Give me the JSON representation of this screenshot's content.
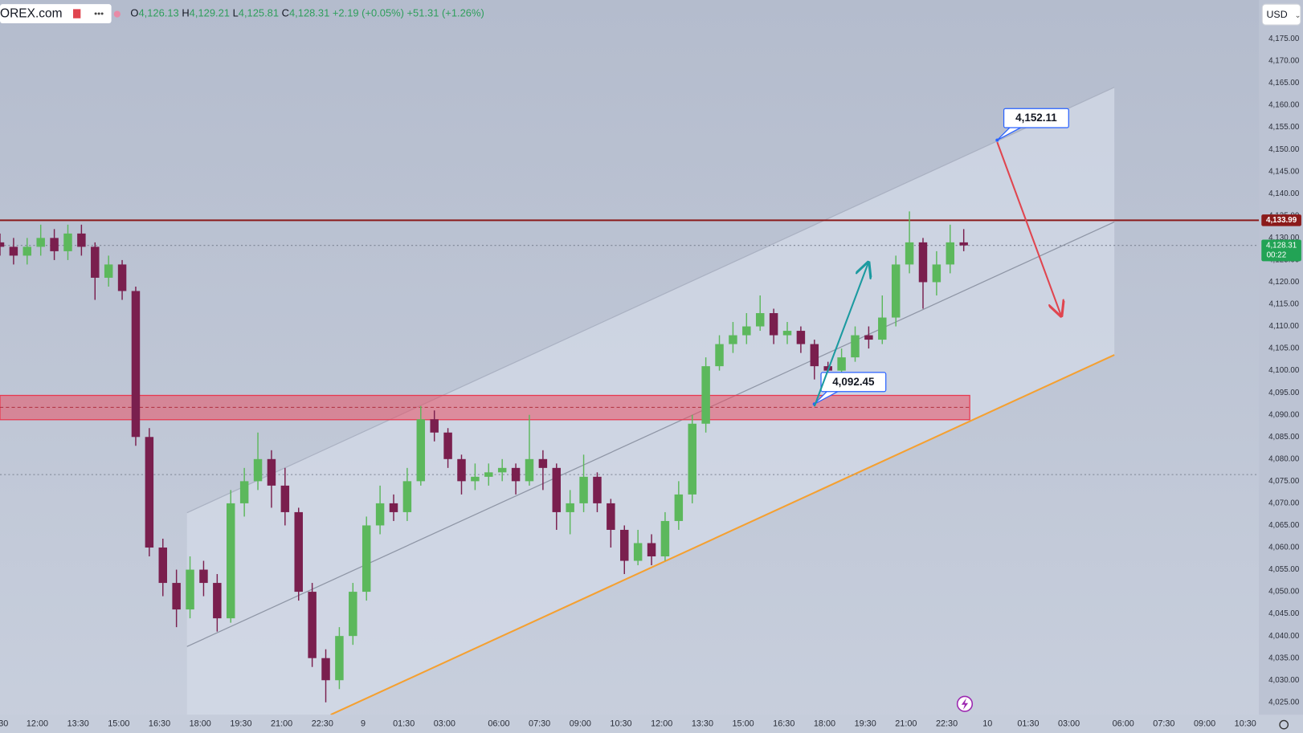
{
  "chart_data": {
    "type": "candlestick",
    "symbol": "OREX.com",
    "currency": "USD",
    "readout": {
      "o_key": "O",
      "o": "4,126.13",
      "h_key": "H",
      "h": "4,129.21",
      "l_key": "L",
      "l": "4,125.81",
      "c_key": "C",
      "c": "4,128.31",
      "change": "+2.19 (+0.05%)",
      "change_day": "+51.31 (+1.26%)"
    },
    "up_color": "#5cb85c",
    "down_color": "#7a1f4e",
    "grid": false,
    "xlim": [
      0,
      92.75
    ],
    "ylim": [
      4022.2,
      4183.8
    ],
    "xticks": [
      {
        "value": 0.25,
        "label": "30"
      },
      {
        "value": 2.75,
        "label": "12:00"
      },
      {
        "value": 5.75,
        "label": "13:30"
      },
      {
        "value": 8.75,
        "label": "15:00"
      },
      {
        "value": 11.75,
        "label": "16:30"
      },
      {
        "value": 14.75,
        "label": "18:00"
      },
      {
        "value": 17.75,
        "label": "19:30"
      },
      {
        "value": 20.75,
        "label": "21:00"
      },
      {
        "value": 23.75,
        "label": "22:30"
      },
      {
        "value": 26.75,
        "label": "9"
      },
      {
        "value": 29.75,
        "label": "01:30"
      },
      {
        "value": 32.75,
        "label": "03:00"
      },
      {
        "value": 36.75,
        "label": "06:00"
      },
      {
        "value": 39.75,
        "label": "07:30"
      },
      {
        "value": 42.75,
        "label": "09:00"
      },
      {
        "value": 45.75,
        "label": "10:30"
      },
      {
        "value": 48.75,
        "label": "12:00"
      },
      {
        "value": 51.75,
        "label": "13:30"
      },
      {
        "value": 54.75,
        "label": "15:00"
      },
      {
        "value": 57.75,
        "label": "16:30"
      },
      {
        "value": 60.75,
        "label": "18:00"
      },
      {
        "value": 63.75,
        "label": "19:30"
      },
      {
        "value": 66.75,
        "label": "21:00"
      },
      {
        "value": 69.75,
        "label": "22:30"
      },
      {
        "value": 72.75,
        "label": "10"
      },
      {
        "value": 75.75,
        "label": "01:30"
      },
      {
        "value": 78.75,
        "label": "03:00"
      },
      {
        "value": 82.75,
        "label": "06:00"
      },
      {
        "value": 85.75,
        "label": "07:30"
      },
      {
        "value": 88.75,
        "label": "09:00"
      },
      {
        "value": 91.75,
        "label": "10:30"
      }
    ],
    "yticks": [
      {
        "value": 4025,
        "label": "4,025.00"
      },
      {
        "value": 4030,
        "label": "4,030.00"
      },
      {
        "value": 4035,
        "label": "4,035.00"
      },
      {
        "value": 4040,
        "label": "4,040.00"
      },
      {
        "value": 4045,
        "label": "4,045.00"
      },
      {
        "value": 4050,
        "label": "4,050.00"
      },
      {
        "value": 4055,
        "label": "4,055.00"
      },
      {
        "value": 4060,
        "label": "4,060.00"
      },
      {
        "value": 4065,
        "label": "4,065.00"
      },
      {
        "value": 4070,
        "label": "4,070.00"
      },
      {
        "value": 4075,
        "label": "4,075.00"
      },
      {
        "value": 4080,
        "label": "4,080.00"
      },
      {
        "value": 4085,
        "label": "4,085.00"
      },
      {
        "value": 4090,
        "label": "4,090.00"
      },
      {
        "value": 4095,
        "label": "4,095.00"
      },
      {
        "value": 4100,
        "label": "4,100.00"
      },
      {
        "value": 4105,
        "label": "4,105.00"
      },
      {
        "value": 4110,
        "label": "4,110.00"
      },
      {
        "value": 4115,
        "label": "4,115.00"
      },
      {
        "value": 4120,
        "label": "4,120.00"
      },
      {
        "value": 4125,
        "label": "4,125.00"
      },
      {
        "value": 4130,
        "label": "4,130.00"
      },
      {
        "value": 4135,
        "label": "4,135.00"
      },
      {
        "value": 4140,
        "label": "4,140.00"
      },
      {
        "value": 4145,
        "label": "4,145.00"
      },
      {
        "value": 4150,
        "label": "4,150.00"
      },
      {
        "value": 4155,
        "label": "4,155.00"
      },
      {
        "value": 4160,
        "label": "4,160.00"
      },
      {
        "value": 4165,
        "label": "4,165.00"
      },
      {
        "value": 4170,
        "label": "4,170.00"
      },
      {
        "value": 4175,
        "label": "4,175.00"
      }
    ],
    "x": [
      0,
      1,
      2,
      3,
      4,
      5,
      6,
      7,
      8,
      9,
      10,
      11,
      12,
      13,
      14,
      15,
      16,
      17,
      18,
      19,
      20,
      21,
      22,
      23,
      24,
      25,
      26,
      27,
      28,
      29,
      30,
      31,
      32,
      33,
      34,
      35,
      36,
      37,
      38,
      39,
      40,
      41,
      42,
      43,
      44,
      45,
      46,
      47,
      48,
      49,
      50,
      51,
      52,
      53,
      54,
      55,
      56,
      57,
      58,
      59,
      60,
      61,
      62,
      63,
      64,
      65,
      66,
      67,
      68,
      69,
      70,
      71
    ],
    "open": [
      4129,
      4128,
      4126,
      4128,
      4130,
      4127,
      4131,
      4128,
      4121,
      4124,
      4118,
      4085,
      4060,
      4052,
      4046,
      4055,
      4052,
      4044,
      4070,
      4075,
      4080,
      4074,
      4068,
      4050,
      4035,
      4030,
      4040,
      4050,
      4065,
      4070,
      4068,
      4075,
      4089,
      4086,
      4080,
      4075,
      4076,
      4077,
      4078,
      4075,
      4080,
      4078,
      4068,
      4070,
      4076,
      4070,
      4064,
      4057,
      4061,
      4058,
      4066,
      4072,
      4088,
      4101,
      4106,
      4108,
      4110,
      4113,
      4108,
      4109,
      4106,
      4101,
      4100,
      4103,
      4108,
      4107,
      4112,
      4124,
      4129,
      4120,
      4124,
      4129
    ],
    "high": [
      4131,
      4130,
      4130,
      4133,
      4132,
      4133,
      4133,
      4129,
      4126,
      4125,
      4119,
      4087,
      4062,
      4055,
      4058,
      4057,
      4054,
      4073,
      4078,
      4086,
      4082,
      4078,
      4069,
      4052,
      4037,
      4042,
      4052,
      4067,
      4074,
      4072,
      4078,
      4092,
      4091,
      4087,
      4081,
      4079,
      4079,
      4080,
      4079,
      4090,
      4082,
      4079,
      4073,
      4081,
      4077,
      4071,
      4065,
      4064,
      4063,
      4068,
      4075,
      4090,
      4103,
      4108,
      4111,
      4113,
      4117,
      4114,
      4111,
      4110,
      4107,
      4102,
      4105,
      4110,
      4110,
      4117,
      4126,
      4136,
      4130,
      4127,
      4133,
      4132
    ],
    "low": [
      4126,
      4124,
      4124,
      4126,
      4125,
      4125,
      4126,
      4116,
      4119,
      4116,
      4083,
      4058,
      4049,
      4042,
      4044,
      4049,
      4041,
      4043,
      4067,
      4073,
      4069,
      4065,
      4048,
      4033,
      4025,
      4028,
      4038,
      4048,
      4063,
      4066,
      4066,
      4074,
      4084,
      4078,
      4072,
      4073,
      4074,
      4075,
      4072,
      4074,
      4073,
      4064,
      4063,
      4068,
      4068,
      4060,
      4054,
      4056,
      4056,
      4057,
      4064,
      4070,
      4086,
      4100,
      4104,
      4106,
      4109,
      4106,
      4106,
      4104,
      4098,
      4098,
      4099,
      4102,
      4105,
      4106,
      4110,
      4122,
      4114,
      4117,
      4122,
      4127
    ],
    "close": [
      4128,
      4126,
      4128,
      4130,
      4127,
      4131,
      4128,
      4121,
      4124,
      4118,
      4085,
      4060,
      4052,
      4046,
      4055,
      4052,
      4044,
      4070,
      4075,
      4080,
      4074,
      4068,
      4050,
      4035,
      4030,
      4040,
      4050,
      4065,
      4070,
      4068,
      4075,
      4089,
      4086,
      4080,
      4075,
      4076,
      4077,
      4078,
      4075,
      4080,
      4078,
      4068,
      4070,
      4076,
      4070,
      4064,
      4057,
      4061,
      4058,
      4066,
      4072,
      4088,
      4101,
      4106,
      4108,
      4110,
      4113,
      4108,
      4109,
      4106,
      4101,
      4100,
      4103,
      4108,
      4107,
      4112,
      4124,
      4129,
      4120,
      4124,
      4129,
      4128.31
    ],
    "level": {
      "value": 4133.99,
      "label": "4,133.99",
      "color": "#8b1a1a"
    },
    "last_price": {
      "value": 4128.31,
      "label": "4,128.31",
      "countdown": "00:22",
      "color": "#22a355"
    },
    "dotted_level": 4076.5,
    "zone": {
      "low": 4088.9,
      "high": 4094.4,
      "mid": 4091.7
    },
    "annotations": [
      {
        "value": 4152.11,
        "label": "4,152.11"
      },
      {
        "value": 4092.45,
        "label": "4,092.45"
      }
    ]
  }
}
